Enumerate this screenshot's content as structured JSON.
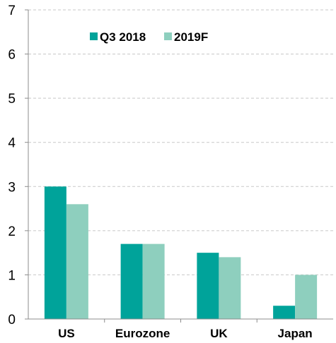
{
  "chart_data": {
    "type": "bar",
    "categories": [
      "US",
      "Eurozone",
      "UK",
      "Japan"
    ],
    "series": [
      {
        "name": "Q3 2018",
        "values": [
          3.0,
          1.7,
          1.5,
          0.3
        ],
        "color": "#00A39A"
      },
      {
        "name": "2019F",
        "values": [
          2.6,
          1.7,
          1.4,
          1.0
        ],
        "color": "#8ECFBE"
      }
    ],
    "ylim": [
      0,
      7
    ],
    "yticks": [
      0,
      1,
      2,
      3,
      4,
      5,
      6,
      7
    ],
    "grid": true,
    "legend_position": "top"
  }
}
